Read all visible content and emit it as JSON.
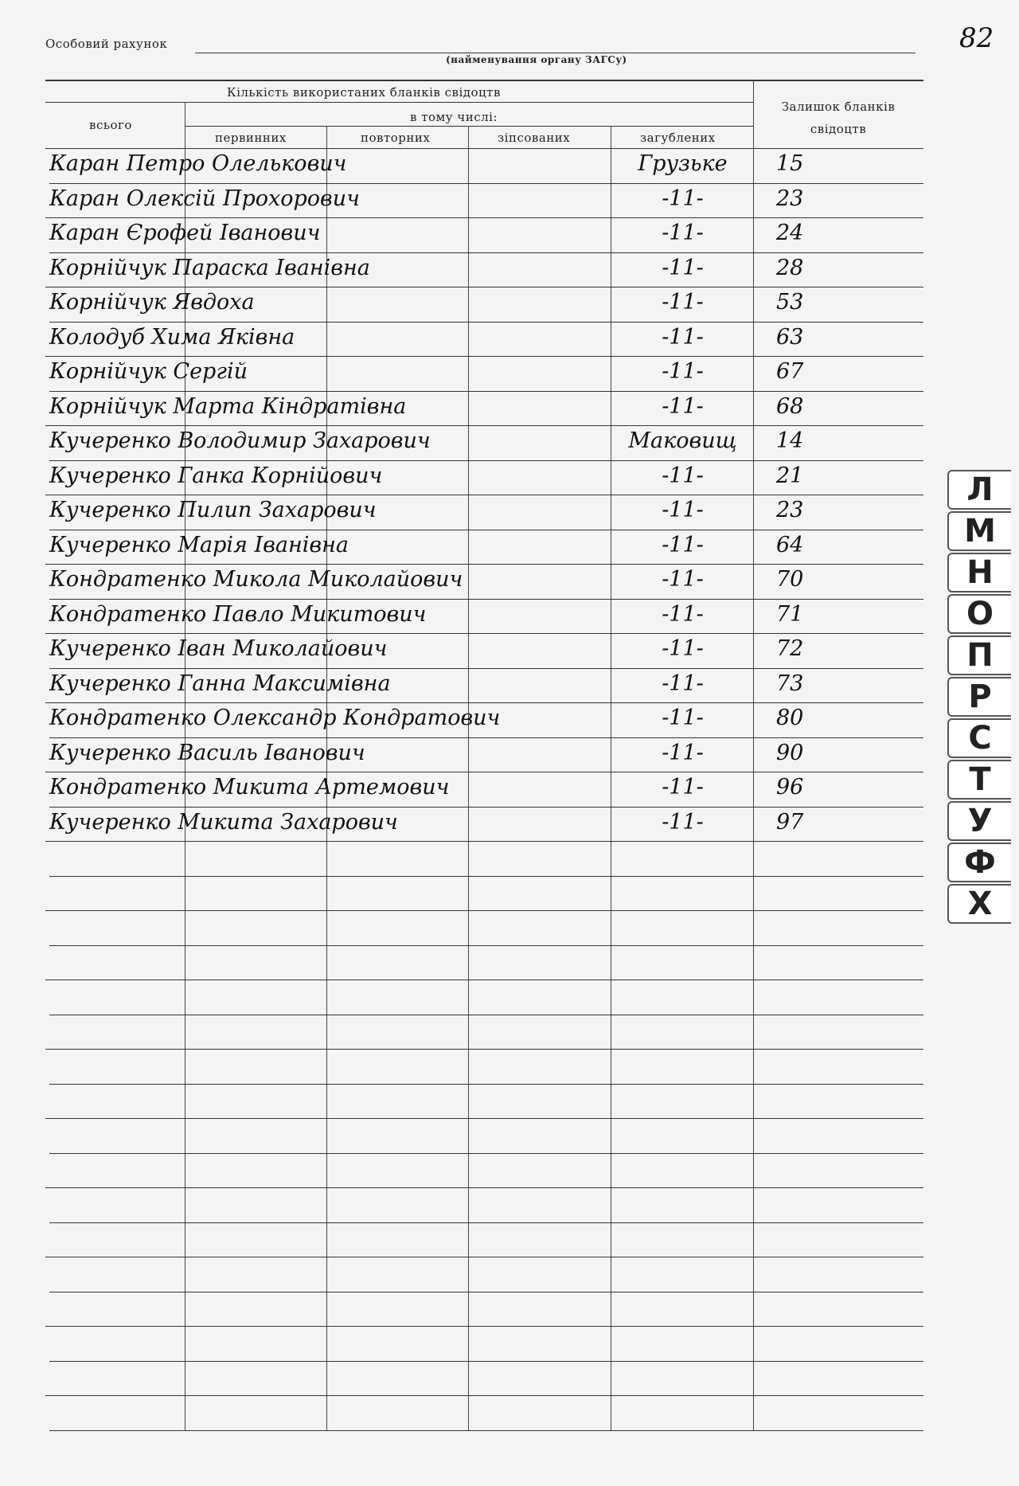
{
  "header": {
    "account_label": "Особовий рахунок",
    "organ_caption": "(найменування органу ЗАГСу)",
    "page_number": "82"
  },
  "table": {
    "columns": {
      "used_title": "Кількість використаних бланків свідоцтв",
      "total": "всього",
      "including": "в тому числі:",
      "primary": "первинних",
      "repeat": "повторних",
      "spoiled": "зіпсованих",
      "lost": "загублених",
      "remainder": "Залишок бланків свідоцтв"
    },
    "rows": [
      [
        "Каран Петро Олелькович",
        "Грузьке",
        "15"
      ],
      [
        "Каран Олексій Прохорович",
        "-11-",
        "23"
      ],
      [
        "Каран Єрофей Іванович",
        "-11-",
        "24"
      ],
      [
        "Корнійчук Параска Іванівна",
        "-11-",
        "28"
      ],
      [
        "Корнійчук Явдоха",
        "-11-",
        "53"
      ],
      [
        "Колодуб Хима Яківна",
        "-11-",
        "63"
      ],
      [
        "Корнійчук Сергій",
        "-11-",
        "67"
      ],
      [
        "Корнійчук Марта Кіндратівна",
        "-11-",
        "68"
      ],
      [
        "Кучеренко Володимир Захарович",
        "Маковищ",
        "14"
      ],
      [
        "Кучеренко Ганка Корнійович",
        "-11-",
        "21"
      ],
      [
        "Кучеренко Пилип Захарович",
        "-11-",
        "23"
      ],
      [
        "Кучеренко Марія Іванівна",
        "-11-",
        "64"
      ],
      [
        "Кондратенко Микола Миколайович",
        "-11-",
        "70"
      ],
      [
        "Кондратенко Павло Микитович",
        "-11-",
        "71"
      ],
      [
        "Кучеренко Іван Миколайович",
        "-11-",
        "72"
      ],
      [
        "Кучеренко Ганна Максимівна",
        "-11-",
        "73"
      ],
      [
        "Кондратенко Олександр Кондратович",
        "-11-",
        "80"
      ],
      [
        "Кучеренко Василь Іванович",
        "-11-",
        "90"
      ],
      [
        "Кондратенко Микита Артемович",
        "-11-",
        "96"
      ],
      [
        "Кучеренко Микита Захарович",
        "-11-",
        "97"
      ]
    ]
  },
  "index_tabs": [
    "Л",
    "М",
    "Н",
    "О",
    "П",
    "Р",
    "С",
    "Т",
    "У",
    "Ф",
    "Х"
  ]
}
